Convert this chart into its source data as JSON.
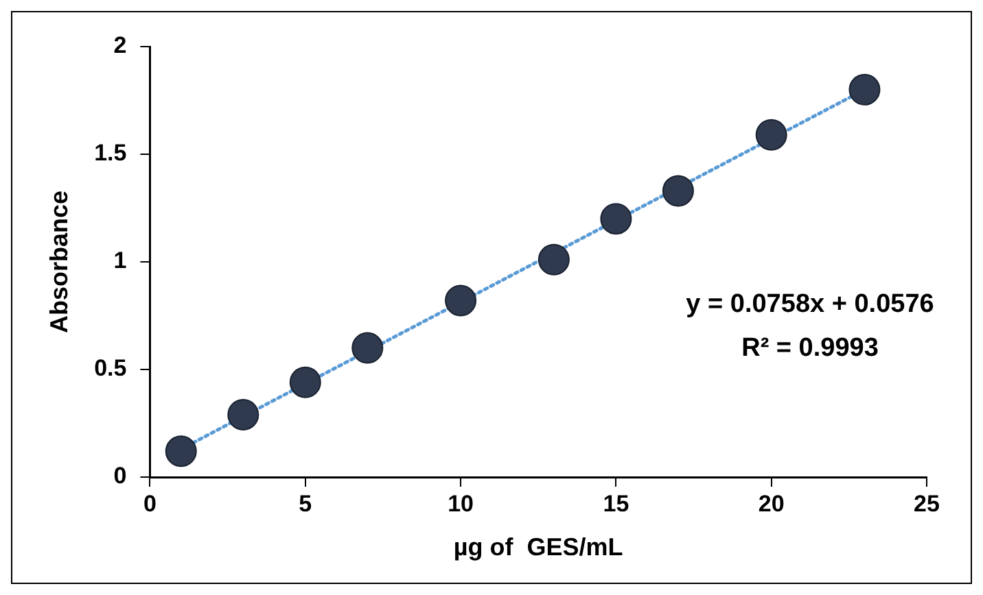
{
  "chart_data": {
    "type": "scatter",
    "xlabel": "µg of  GES/mL",
    "ylabel": "Absorbance",
    "xlim": [
      0,
      25
    ],
    "xticks": [
      0,
      5,
      10,
      15,
      20,
      25
    ],
    "ylim": [
      0,
      2
    ],
    "yticks": [
      0,
      0.5,
      1,
      1.5,
      2
    ],
    "grid": false,
    "legend": false,
    "series": [
      {
        "marker": "circle",
        "color": "#2f3a4f",
        "x": [
          1,
          3,
          5,
          7,
          10,
          13,
          15,
          17,
          20,
          23
        ],
        "values": [
          0.12,
          0.29,
          0.44,
          0.6,
          0.82,
          1.01,
          1.2,
          1.33,
          1.59,
          1.8
        ]
      },
      {
        "type": "line",
        "color": "#5b9bd5",
        "line_style": "dotted",
        "marker": "none",
        "x": [
          1,
          23
        ],
        "values": [
          0.13,
          1.8
        ]
      }
    ],
    "annotations": [
      "y = 0.0758x + 0.0576",
      "R² = 0.9993"
    ]
  }
}
